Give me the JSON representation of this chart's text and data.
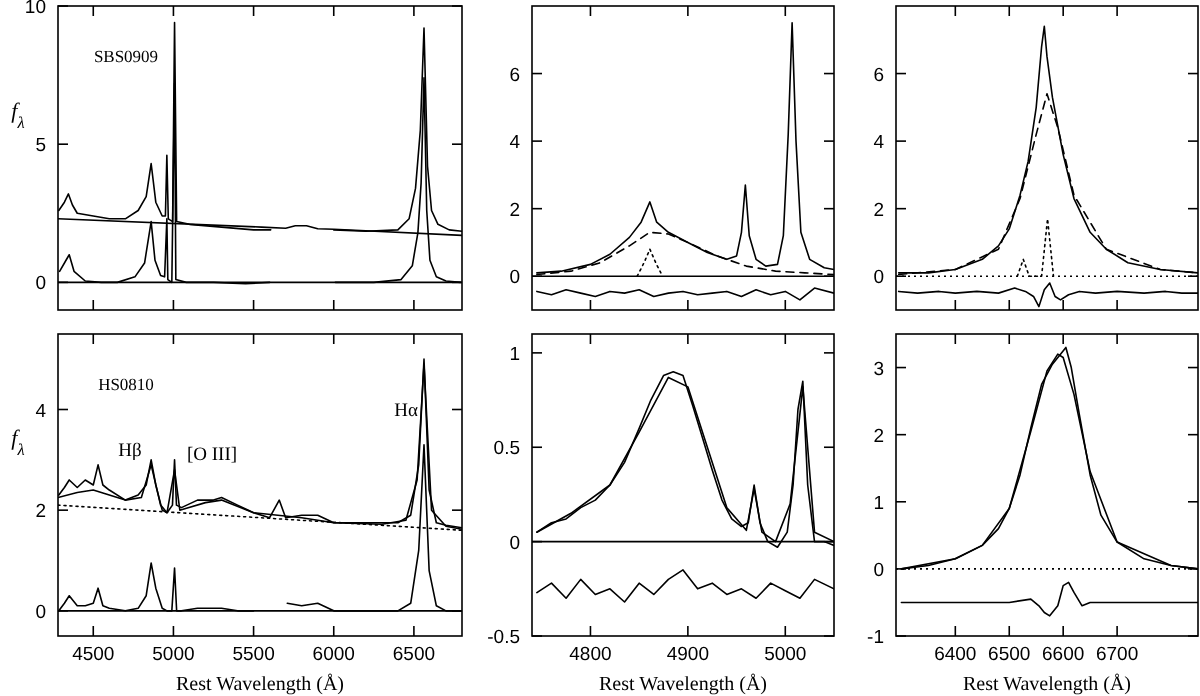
{
  "chart_data": [
    {
      "type": "line",
      "xlim": [
        4280,
        6800
      ],
      "ylim": [
        -1,
        10
      ],
      "xticks": [
        4500,
        5000,
        5500,
        6000,
        6500
      ],
      "yticks": [
        0,
        5,
        10
      ],
      "tick_labels": "y",
      "ylabel": "f$_{λ}$",
      "annotations": [
        "SBS0909"
      ],
      "ref_lines": [
        {
          "axis": "y",
          "value": 0,
          "line_style": "solid"
        }
      ],
      "series": [
        {
          "color": "#000000",
          "line_style": "solid",
          "x": [
            4280,
            5550,
            5700,
            5760,
            5830,
            5900,
            6000,
            6800
          ],
          "values": [
            2.3,
            2.0,
            1.96,
            2.05,
            2.05,
            1.94,
            1.92,
            1.7
          ]
        },
        {
          "color": "#000000",
          "line_style": "solid",
          "x": [
            4285,
            4320,
            4345,
            4370,
            4400,
            4500,
            4600,
            4700,
            4780,
            4830,
            4861,
            4890,
            4930,
            4950,
            4959,
            4968,
            4995,
            5007,
            5020,
            5100,
            5300,
            5500,
            5607
          ],
          "values": [
            2.6,
            2.9,
            3.2,
            2.8,
            2.5,
            2.4,
            2.3,
            2.3,
            2.6,
            3.1,
            4.3,
            2.9,
            2.4,
            2.4,
            4.6,
            2.3,
            2.2,
            9.4,
            2.2,
            2.1,
            2.0,
            1.9,
            1.9
          ]
        },
        {
          "color": "#000000",
          "line_style": "solid",
          "x": [
            6000,
            6200,
            6400,
            6470,
            6510,
            6540,
            6563,
            6585,
            6610,
            6650,
            6720,
            6800
          ],
          "values": [
            1.9,
            1.85,
            1.9,
            2.3,
            3.4,
            5.5,
            9.2,
            4.2,
            2.6,
            2.1,
            1.9,
            1.85
          ]
        },
        {
          "color": "#000000",
          "line_style": "solid",
          "x": [
            4290,
            4330,
            4350,
            4380,
            4450,
            4550,
            4650,
            4760,
            4820,
            4861,
            4885,
            4920,
            4945,
            4959,
            4965,
            4990,
            5007,
            5015,
            5080,
            5250,
            5450,
            5600,
            5800,
            6010,
            6250,
            6420,
            6490,
            6525,
            6545,
            6563,
            6580,
            6600,
            6640,
            6700,
            6790
          ],
          "values": [
            0.4,
            0.8,
            1.0,
            0.4,
            0.05,
            0.0,
            0.0,
            0.2,
            0.7,
            2.2,
            0.8,
            0.25,
            0.2,
            2.3,
            0.1,
            0.0,
            7.2,
            0.1,
            0.0,
            0.0,
            -0.05,
            0.0,
            null,
            0.0,
            0.0,
            0.1,
            0.6,
            1.8,
            3.6,
            7.4,
            2.6,
            0.8,
            0.2,
            0.05,
            0.0
          ]
        }
      ]
    },
    {
      "type": "line",
      "xlim": [
        4740,
        5050
      ],
      "ylim": [
        -1,
        8
      ],
      "xticks": [
        4800,
        4900,
        5000
      ],
      "yticks": [
        0,
        2,
        4,
        6
      ],
      "tick_labels": "y",
      "ref_lines": [
        {
          "axis": "y",
          "value": 0,
          "line_style": "solid"
        }
      ],
      "series": [
        {
          "color": "#000000",
          "line_style": "solid",
          "x": [
            4745,
            4770,
            4800,
            4820,
            4840,
            4852,
            4861,
            4868,
            4880,
            4900,
            4920,
            4940,
            4950,
            4955,
            4959,
            4963,
            4970,
            4980,
            4992,
            4998,
            5003,
            5007,
            5011,
            5016,
            5025,
            5040,
            5050
          ],
          "values": [
            0.1,
            0.15,
            0.35,
            0.65,
            1.15,
            1.6,
            2.2,
            1.6,
            1.3,
            1.0,
            0.7,
            0.5,
            0.6,
            1.3,
            2.7,
            1.2,
            0.5,
            0.3,
            0.35,
            1.2,
            4.2,
            7.5,
            4.0,
            1.3,
            0.5,
            0.25,
            0.2
          ]
        },
        {
          "color": "#000000",
          "line_style": "dashed",
          "x": [
            4745,
            4780,
            4810,
            4840,
            4861,
            4880,
            4900,
            4930,
            4960,
            4990,
            5020,
            5050
          ],
          "values": [
            0.05,
            0.15,
            0.4,
            0.9,
            1.3,
            1.25,
            1.0,
            0.6,
            0.3,
            0.15,
            0.1,
            0.05
          ]
        },
        {
          "color": "#000000",
          "line_style": "dotted",
          "x": [
            4848,
            4855,
            4861,
            4867,
            4874
          ],
          "values": [
            0,
            0.4,
            0.8,
            0.4,
            0
          ]
        },
        {
          "color": "#000000",
          "line_style": "solid",
          "x": [
            4745,
            4760,
            4775,
            4790,
            4805,
            4820,
            4835,
            4850,
            4865,
            4880,
            4895,
            4910,
            4925,
            4940,
            4955,
            4970,
            4985,
            5000,
            5015,
            5030,
            5050
          ],
          "values": [
            -0.45,
            -0.55,
            -0.4,
            -0.5,
            -0.6,
            -0.45,
            -0.5,
            -0.4,
            -0.6,
            -0.5,
            -0.45,
            -0.55,
            -0.5,
            -0.45,
            -0.6,
            -0.4,
            -0.55,
            -0.45,
            -0.7,
            -0.35,
            -0.5
          ]
        }
      ]
    },
    {
      "type": "line",
      "xlim": [
        6290,
        6850
      ],
      "ylim": [
        -1,
        8
      ],
      "xticks": [
        6400,
        6500,
        6600,
        6700
      ],
      "yticks": [
        0,
        2,
        4,
        6
      ],
      "tick_labels": "y",
      "ref_lines": [
        {
          "axis": "y",
          "value": 0,
          "line_style": "dotted"
        }
      ],
      "series": [
        {
          "color": "#000000",
          "line_style": "solid",
          "x": [
            6295,
            6350,
            6400,
            6450,
            6480,
            6500,
            6520,
            6535,
            6550,
            6560,
            6565,
            6570,
            6580,
            6600,
            6620,
            6650,
            6680,
            6720,
            6780,
            6850
          ],
          "values": [
            0.1,
            0.1,
            0.2,
            0.5,
            0.9,
            1.4,
            2.4,
            3.4,
            5.0,
            6.8,
            7.4,
            6.5,
            5.3,
            3.6,
            2.3,
            1.3,
            0.8,
            0.4,
            0.2,
            0.1
          ]
        },
        {
          "color": "#000000",
          "line_style": "dashed",
          "x": [
            6295,
            6400,
            6480,
            6520,
            6550,
            6570,
            6590,
            6620,
            6680,
            6780,
            6850
          ],
          "values": [
            0.05,
            0.2,
            0.8,
            2.3,
            4.2,
            5.4,
            4.4,
            2.4,
            0.8,
            0.2,
            0.1
          ]
        },
        {
          "color": "#000000",
          "line_style": "dotted",
          "x": [
            6515,
            6526,
            6537,
            6560,
            6571,
            6582
          ],
          "values": [
            0,
            0.5,
            0,
            0,
            1.7,
            0
          ]
        },
        {
          "color": "#000000",
          "line_style": "solid",
          "x": [
            6295,
            6330,
            6370,
            6400,
            6440,
            6480,
            6510,
            6530,
            6545,
            6555,
            6565,
            6575,
            6585,
            6595,
            6610,
            6630,
            6660,
            6700,
            6750,
            6790,
            6820,
            6850
          ],
          "values": [
            -0.45,
            -0.5,
            -0.45,
            -0.5,
            -0.45,
            -0.5,
            -0.35,
            -0.45,
            -0.6,
            -0.9,
            -0.4,
            -0.2,
            -0.6,
            -0.7,
            -0.55,
            -0.45,
            -0.5,
            -0.45,
            -0.5,
            -0.45,
            -0.5,
            -0.5
          ]
        }
      ]
    },
    {
      "type": "line",
      "xlim": [
        4280,
        6800
      ],
      "ylim": [
        -0.5,
        5.5
      ],
      "xticks": [
        4500,
        5000,
        5500,
        6000,
        6500
      ],
      "yticks": [
        0,
        2,
        4
      ],
      "xlabel": "Rest Wavelength (Å)",
      "ylabel": "f$_{λ}$",
      "annotations": [
        "HS0810",
        "Hβ",
        "[O III]",
        "Hα"
      ],
      "ref_lines": [
        {
          "axis": "y",
          "value": 0,
          "line_style": "solid"
        }
      ],
      "series": [
        {
          "color": "#000000",
          "line_style": "solid",
          "x": [
            4285,
            4320,
            4350,
            4400,
            4450,
            4500,
            4530,
            4560,
            4600,
            4700,
            4780,
            4830,
            4861,
            4890,
            4930,
            4960,
            4994,
            5007,
            5019,
            5050,
            5150,
            5250,
            5300,
            5400,
            5500,
            5600,
            5660,
            5700,
            5800,
            5900,
            6000,
            6100,
            6200,
            6300,
            6400,
            6480,
            6530,
            6563,
            6595,
            6640,
            6700,
            6800
          ],
          "values": [
            2.3,
            2.45,
            2.6,
            2.45,
            2.6,
            2.5,
            2.9,
            2.5,
            2.4,
            2.2,
            2.3,
            2.5,
            3.0,
            2.5,
            2.0,
            1.95,
            2.1,
            3.0,
            2.1,
            2.05,
            2.2,
            2.2,
            2.25,
            2.1,
            1.95,
            1.85,
            2.2,
            1.85,
            1.9,
            1.9,
            1.75,
            1.75,
            1.75,
            1.75,
            1.75,
            1.9,
            2.9,
            5.0,
            2.4,
            1.75,
            1.7,
            1.65
          ]
        },
        {
          "color": "#000000",
          "line_style": "solid",
          "x": [
            4280,
            4400,
            4500,
            4700,
            4800,
            4861,
            4920,
            4960,
            5007,
            5040,
            5200,
            5300,
            5500,
            5800,
            6000,
            6300,
            6450,
            6520,
            6563,
            6610,
            6700,
            6800
          ],
          "values": [
            2.25,
            2.35,
            2.4,
            2.2,
            2.25,
            2.9,
            2.1,
            1.95,
            2.8,
            2.0,
            2.15,
            2.2,
            1.95,
            1.85,
            1.75,
            1.72,
            1.8,
            2.6,
            4.9,
            2.0,
            1.68,
            1.62
          ]
        },
        {
          "color": "#000000",
          "line_style": "dotted",
          "x": [
            4280,
            6800
          ],
          "values": [
            2.1,
            1.6
          ]
        },
        {
          "color": "#000000",
          "line_style": "solid",
          "x": [
            4285,
            4320,
            4350,
            4400,
            4450,
            4500,
            4530,
            4560,
            4600,
            4700,
            4780,
            4830,
            4861,
            4890,
            4930,
            4960,
            4990,
            5007,
            5020,
            5050,
            5150,
            5300,
            5400,
            5500,
            5600,
            5710,
            5800,
            5900,
            6000,
            6200,
            6400,
            6480,
            6530,
            6563,
            6595,
            6640,
            6700,
            6800
          ],
          "values": [
            0.0,
            0.15,
            0.3,
            0.1,
            0.1,
            0.15,
            0.45,
            0.1,
            0.05,
            0.0,
            0.05,
            0.3,
            0.95,
            0.45,
            0.05,
            0.0,
            0.0,
            0.85,
            0.0,
            0.0,
            0.05,
            0.05,
            0.0,
            0.0,
            null,
            0.15,
            0.1,
            0.15,
            0.0,
            0.0,
            0.0,
            0.15,
            1.2,
            3.3,
            0.8,
            0.1,
            0.0,
            0.0
          ]
        }
      ]
    },
    {
      "type": "line",
      "xlim": [
        4740,
        5050
      ],
      "ylim": [
        -0.5,
        1.1
      ],
      "xticks": [
        4800,
        4900,
        5000
      ],
      "yticks": [
        -0.5,
        0,
        0.5,
        1
      ],
      "xlabel": "Rest Wavelength (Å)",
      "ref_lines": [
        {
          "axis": "y",
          "value": 0,
          "line_style": "solid"
        }
      ],
      "series": [
        {
          "color": "#000000",
          "line_style": "solid",
          "x": [
            4745,
            4760,
            4775,
            4790,
            4805,
            4820,
            4835,
            4850,
            4862,
            4875,
            4885,
            4895,
            4905,
            4915,
            4925,
            4935,
            4945,
            4955,
            4962,
            4968,
            4974,
            4982,
            4992,
            5002,
            5008,
            5013,
            5018,
            5023,
            5030,
            5040,
            5050
          ],
          "values": [
            0.05,
            0.1,
            0.12,
            0.18,
            0.22,
            0.3,
            0.42,
            0.6,
            0.75,
            0.88,
            0.9,
            0.88,
            0.72,
            0.55,
            0.38,
            0.22,
            0.12,
            0.08,
            0.1,
            0.3,
            0.1,
            0.0,
            -0.03,
            0.05,
            0.3,
            0.7,
            0.85,
            0.3,
            0.0,
            0.0,
            -0.02
          ]
        },
        {
          "color": "#000000",
          "line_style": "solid",
          "x": [
            4745,
            4780,
            4820,
            4850,
            4880,
            4900,
            4920,
            4940,
            4960,
            4968,
            4976,
            4990,
            5005,
            5018,
            5030,
            5050
          ],
          "values": [
            0.05,
            0.15,
            0.3,
            0.58,
            0.87,
            0.82,
            0.5,
            0.18,
            0.06,
            0.28,
            0.05,
            0.0,
            0.2,
            0.82,
            0.05,
            0.0
          ]
        },
        {
          "color": "#000000",
          "line_style": "solid",
          "x": [
            4745,
            4760,
            4775,
            4790,
            4805,
            4820,
            4835,
            4850,
            4865,
            4880,
            4895,
            4910,
            4925,
            4940,
            4955,
            4970,
            4985,
            5000,
            5015,
            5030,
            5050
          ],
          "values": [
            -0.27,
            -0.22,
            -0.3,
            -0.2,
            -0.28,
            -0.25,
            -0.32,
            -0.22,
            -0.28,
            -0.2,
            -0.15,
            -0.25,
            -0.22,
            -0.28,
            -0.25,
            -0.3,
            -0.22,
            -0.26,
            -0.3,
            -0.2,
            -0.25
          ]
        }
      ]
    },
    {
      "type": "line",
      "xlim": [
        6290,
        6850
      ],
      "ylim": [
        -1,
        3.5
      ],
      "xticks": [
        6400,
        6500,
        6600,
        6700
      ],
      "yticks": [
        -1,
        0,
        1,
        2,
        3
      ],
      "xlabel": "Rest Wavelength (Å)",
      "ref_lines": [
        {
          "axis": "y",
          "value": 0,
          "line_style": "dotted"
        }
      ],
      "series": [
        {
          "color": "#000000",
          "line_style": "solid",
          "x": [
            6300,
            6350,
            6400,
            6450,
            6480,
            6500,
            6520,
            6540,
            6560,
            6580,
            6595,
            6605,
            6615,
            6630,
            6650,
            6670,
            6700,
            6750,
            6800,
            6850
          ],
          "values": [
            0.0,
            0.05,
            0.15,
            0.35,
            0.6,
            0.9,
            1.4,
            2.1,
            2.75,
            3.05,
            3.2,
            3.3,
            3.0,
            2.3,
            1.4,
            0.8,
            0.4,
            0.15,
            0.05,
            0.0
          ]
        },
        {
          "color": "#000000",
          "line_style": "solid",
          "x": [
            6300,
            6400,
            6450,
            6500,
            6540,
            6570,
            6590,
            6600,
            6620,
            6650,
            6700,
            6800,
            6850
          ],
          "values": [
            0.0,
            0.15,
            0.35,
            0.9,
            2.05,
            2.95,
            3.2,
            3.15,
            2.6,
            1.45,
            0.4,
            0.05,
            0.0
          ]
        },
        {
          "color": "#000000",
          "line_style": "solid",
          "x": [
            6300,
            6400,
            6500,
            6540,
            6555,
            6565,
            6575,
            6590,
            6600,
            6610,
            6620,
            6635,
            6650,
            6700,
            6850
          ],
          "values": [
            -0.5,
            -0.5,
            -0.5,
            -0.45,
            -0.55,
            -0.65,
            -0.7,
            -0.55,
            -0.25,
            -0.2,
            -0.35,
            -0.55,
            -0.5,
            -0.5,
            -0.5
          ]
        }
      ]
    }
  ]
}
